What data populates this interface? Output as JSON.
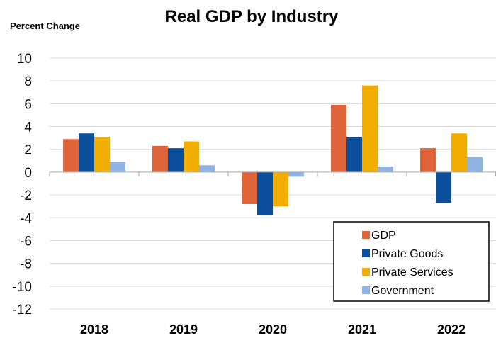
{
  "chart_data": {
    "type": "bar",
    "title": "Real GDP by Industry",
    "ylabel": "Percent Change",
    "xlabel": "",
    "categories": [
      "2018",
      "2019",
      "2020",
      "2021",
      "2022"
    ],
    "series": [
      {
        "name": "GDP",
        "color": "#E0643A",
        "values": [
          2.9,
          2.3,
          -2.8,
          5.9,
          2.1
        ]
      },
      {
        "name": "Private Goods",
        "color": "#0B4F9C",
        "values": [
          3.4,
          2.1,
          -3.8,
          3.1,
          -2.7
        ]
      },
      {
        "name": "Private Services",
        "color": "#F2AE00",
        "values": [
          3.1,
          2.7,
          -3.0,
          7.6,
          3.4
        ]
      },
      {
        "name": "Government",
        "color": "#8FB4E3",
        "values": [
          0.9,
          0.6,
          -0.4,
          0.5,
          1.3
        ]
      }
    ],
    "ylim": [
      -12,
      10
    ],
    "yticks": [
      "10",
      "8",
      "6",
      "4",
      "2",
      "0",
      "-2",
      "-4",
      "-6",
      "-8",
      "-10",
      "-12"
    ],
    "grid": true,
    "legend_position": "bottom-right"
  }
}
